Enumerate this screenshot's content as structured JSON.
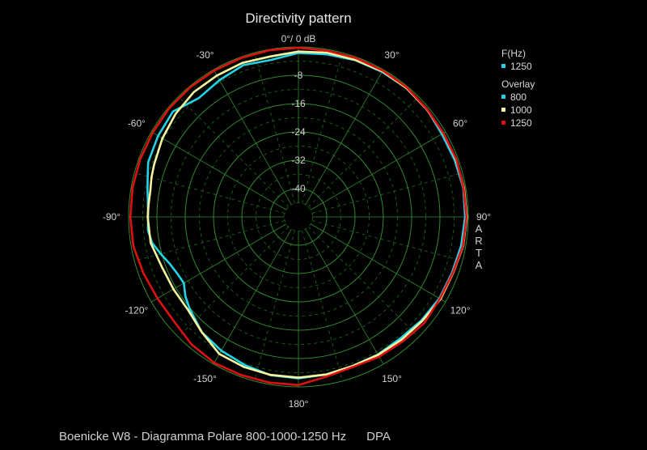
{
  "caption": "Boenicke W8 - Diagramma Polare 800-1000-1250 Hz      DPA",
  "chart_data": {
    "type": "polar-line",
    "title": "Directivity pattern",
    "brand": "ARTA",
    "top_label": "0°/ 0 dB",
    "radial_unit": "dB",
    "radial_range": [
      -48,
      0
    ],
    "radial_ticks": [
      {
        "value": -8,
        "label": "-8"
      },
      {
        "value": -16,
        "label": "-16"
      },
      {
        "value": -24,
        "label": "-24"
      },
      {
        "value": -32,
        "label": "-32"
      },
      {
        "value": -40,
        "label": "-40"
      }
    ],
    "angle_labels": [
      {
        "angle": 30,
        "label": "30°"
      },
      {
        "angle": 60,
        "label": "60°"
      },
      {
        "angle": 90,
        "label": "90°"
      },
      {
        "angle": 120,
        "label": "120°"
      },
      {
        "angle": 150,
        "label": "150°"
      },
      {
        "angle": 180,
        "label": "180°"
      },
      {
        "angle": -150,
        "label": "-150°"
      },
      {
        "angle": -120,
        "label": "-120°"
      },
      {
        "angle": -90,
        "label": "-90°"
      },
      {
        "angle": -60,
        "label": "-60°"
      },
      {
        "angle": -30,
        "label": "-30°"
      }
    ],
    "grid": true,
    "legend": {
      "position": "top-right",
      "current_title": "F(Hz)",
      "current": [
        {
          "label": "1250",
          "color": "#22D3E8"
        }
      ],
      "overlay_title": "Overlay",
      "overlay": [
        {
          "label": "800",
          "color": "#22D3E8"
        },
        {
          "label": "1000",
          "color": "#F4F4A0"
        },
        {
          "label": "1250",
          "color": "#E01010"
        }
      ]
    },
    "series": [
      {
        "name": "800",
        "color": "#22D3E8",
        "points": [
          [
            -180,
            -2.4
          ],
          [
            -170,
            -2.6
          ],
          [
            -160,
            -3.5
          ],
          [
            -150,
            -4.4
          ],
          [
            -140,
            -5.5
          ],
          [
            -130,
            -7.8
          ],
          [
            -125,
            -9.0
          ],
          [
            -120,
            -10.6
          ],
          [
            -115,
            -10.2
          ],
          [
            -110,
            -9.3
          ],
          [
            -105,
            -7.7
          ],
          [
            -100,
            -6.0
          ],
          [
            -95,
            -5.3
          ],
          [
            -90,
            -5.5
          ],
          [
            -85,
            -5.3
          ],
          [
            -80,
            -4.7
          ],
          [
            -75,
            -3.9
          ],
          [
            -70,
            -2.8
          ],
          [
            -60,
            -2.2
          ],
          [
            -50,
            -1.7
          ],
          [
            -40,
            -4.2
          ],
          [
            -30,
            -3.4
          ],
          [
            -20,
            -2.4
          ],
          [
            -10,
            -3.0
          ],
          [
            0,
            -1.7
          ],
          [
            10,
            -1.4
          ],
          [
            20,
            -0.9
          ],
          [
            30,
            -0.7
          ],
          [
            40,
            -0.5
          ],
          [
            50,
            -0.6
          ],
          [
            60,
            -1.2
          ],
          [
            70,
            -1.0
          ],
          [
            80,
            -0.7
          ],
          [
            90,
            -0.9
          ],
          [
            100,
            -1.3
          ],
          [
            110,
            -1.8
          ],
          [
            120,
            -2.0
          ],
          [
            130,
            -2.6
          ],
          [
            140,
            -3.2
          ],
          [
            150,
            -3.1
          ],
          [
            160,
            -3.2
          ],
          [
            170,
            -2.8
          ],
          [
            180,
            -2.4
          ]
        ]
      },
      {
        "name": "1000",
        "color": "#F4F4A0",
        "points": [
          [
            -180,
            -2.6
          ],
          [
            -170,
            -2.7
          ],
          [
            -160,
            -2.9
          ],
          [
            -150,
            -3.3
          ],
          [
            -140,
            -5.5
          ],
          [
            -130,
            -7.2
          ],
          [
            -120,
            -7.2
          ],
          [
            -110,
            -6.9
          ],
          [
            -100,
            -5.6
          ],
          [
            -90,
            -5.4
          ],
          [
            -85,
            -5.5
          ],
          [
            -80,
            -5.5
          ],
          [
            -75,
            -5.0
          ],
          [
            -70,
            -4.6
          ],
          [
            -60,
            -3.6
          ],
          [
            -50,
            -2.7
          ],
          [
            -40,
            -2.0
          ],
          [
            -30,
            -1.9
          ],
          [
            -20,
            -1.7
          ],
          [
            -10,
            -2.0
          ],
          [
            0,
            -1.3
          ],
          [
            10,
            -0.9
          ],
          [
            20,
            -0.8
          ],
          [
            30,
            -0.5
          ],
          [
            40,
            -0.5
          ],
          [
            50,
            -0.7
          ],
          [
            60,
            -0.7
          ],
          [
            70,
            -0.6
          ],
          [
            80,
            -0.5
          ],
          [
            90,
            -0.4
          ],
          [
            100,
            -0.7
          ],
          [
            110,
            -1.5
          ],
          [
            120,
            -1.6
          ],
          [
            130,
            -2.3
          ],
          [
            140,
            -2.7
          ],
          [
            150,
            -3.0
          ],
          [
            160,
            -3.2
          ],
          [
            170,
            -2.8
          ],
          [
            180,
            -2.6
          ]
        ]
      },
      {
        "name": "1250",
        "color": "#E01010",
        "points": [
          [
            -180,
            -0.5
          ],
          [
            -170,
            -0.5
          ],
          [
            -160,
            -0.5
          ],
          [
            -150,
            -0.4
          ],
          [
            -140,
            -1.0
          ],
          [
            -130,
            -2.1
          ],
          [
            -120,
            -2.0
          ],
          [
            -110,
            -1.4
          ],
          [
            -100,
            -0.6
          ],
          [
            -90,
            -0.5
          ],
          [
            -80,
            -0.4
          ],
          [
            -70,
            -0.4
          ],
          [
            -60,
            -0.4
          ],
          [
            -50,
            -0.3
          ],
          [
            -40,
            -0.3
          ],
          [
            -30,
            -0.3
          ],
          [
            -20,
            -0.3
          ],
          [
            -10,
            -0.2
          ],
          [
            0,
            -0.2
          ],
          [
            10,
            -0.4
          ],
          [
            20,
            -0.3
          ],
          [
            30,
            -0.3
          ],
          [
            40,
            -0.3
          ],
          [
            50,
            -0.6
          ],
          [
            60,
            -0.7
          ],
          [
            70,
            -0.5
          ],
          [
            80,
            -0.6
          ],
          [
            90,
            -0.5
          ],
          [
            100,
            -0.8
          ],
          [
            110,
            -1.6
          ],
          [
            120,
            -1.8
          ],
          [
            130,
            -1.5
          ],
          [
            140,
            -2.1
          ],
          [
            150,
            -2.4
          ],
          [
            160,
            -2.9
          ],
          [
            170,
            -2.2
          ],
          [
            180,
            -0.5
          ]
        ]
      }
    ]
  }
}
